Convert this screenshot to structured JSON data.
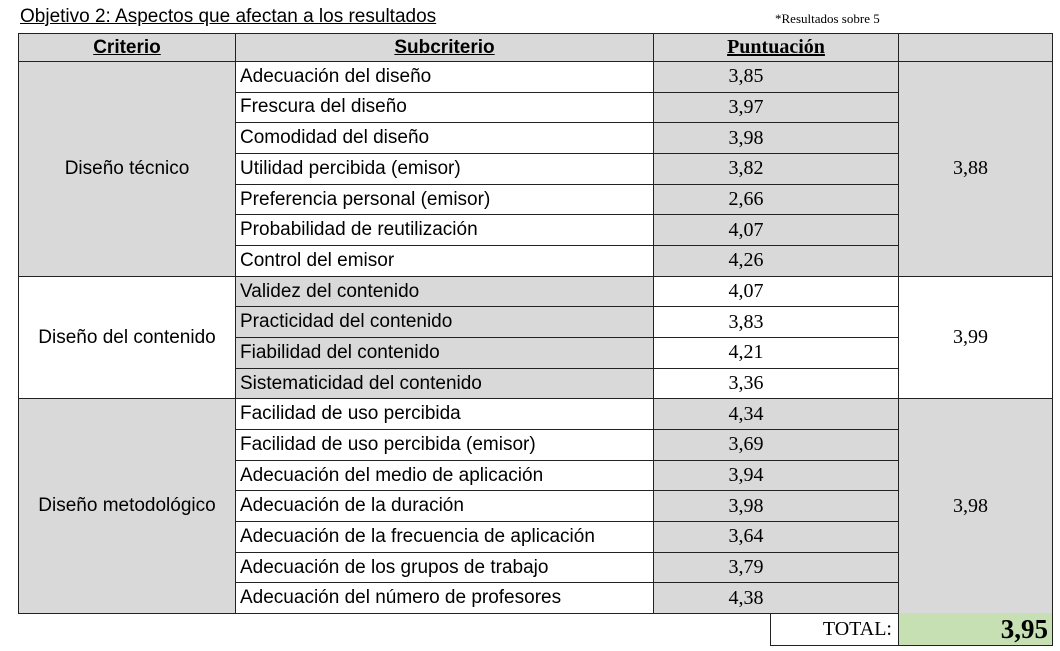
{
  "title": "Objetivo 2: Aspectos que afectan a los resultados",
  "note": "*Resultados sobre 5",
  "table": {
    "headers": [
      "Criterio",
      "Subcriterio",
      "Puntuación"
    ],
    "groups": [
      {
        "criterio": "Diseño técnico",
        "average": "3,88",
        "rows": [
          {
            "subcriterio": "Adecuación del diseño",
            "puntuacion": "3,85"
          },
          {
            "subcriterio": "Frescura del diseño",
            "puntuacion": "3,97"
          },
          {
            "subcriterio": "Comodidad del diseño",
            "puntuacion": "3,98"
          },
          {
            "subcriterio": "Utilidad percibida (emisor)",
            "puntuacion": "3,82"
          },
          {
            "subcriterio": "Preferencia personal (emisor)",
            "puntuacion": "2,66"
          },
          {
            "subcriterio": "Probabilidad de reutilización",
            "puntuacion": "4,07"
          },
          {
            "subcriterio": "Control del emisor",
            "puntuacion": "4,26"
          }
        ]
      },
      {
        "criterio": "Diseño del contenido",
        "average": "3,99",
        "rows": [
          {
            "subcriterio": "Validez del contenido",
            "puntuacion": "4,07"
          },
          {
            "subcriterio": "Practicidad del contenido",
            "puntuacion": "3,83"
          },
          {
            "subcriterio": "Fiabilidad del contenido",
            "puntuacion": "4,21"
          },
          {
            "subcriterio": "Sistematicidad del contenido",
            "puntuacion": "3,36"
          }
        ]
      },
      {
        "criterio": "Diseño metodológico",
        "average": "3,98",
        "rows": [
          {
            "subcriterio": "Facilidad de uso percibida",
            "puntuacion": "4,34"
          },
          {
            "subcriterio": "Facilidad de uso percibida (emisor)",
            "puntuacion": "3,69"
          },
          {
            "subcriterio": "Adecuación del medio de aplicación",
            "puntuacion": "3,94"
          },
          {
            "subcriterio": "Adecuación de la duración",
            "puntuacion": "3,98"
          },
          {
            "subcriterio": "Adecuación de la frecuencia de aplicación",
            "puntuacion": "3,64"
          },
          {
            "subcriterio": "Adecuación de los grupos de trabajo",
            "puntuacion": "3,79"
          },
          {
            "subcriterio": "Adecuación del número de profesores",
            "puntuacion": "4,38"
          }
        ]
      }
    ]
  },
  "total": {
    "label": "TOTAL:",
    "value": "3,95"
  }
}
